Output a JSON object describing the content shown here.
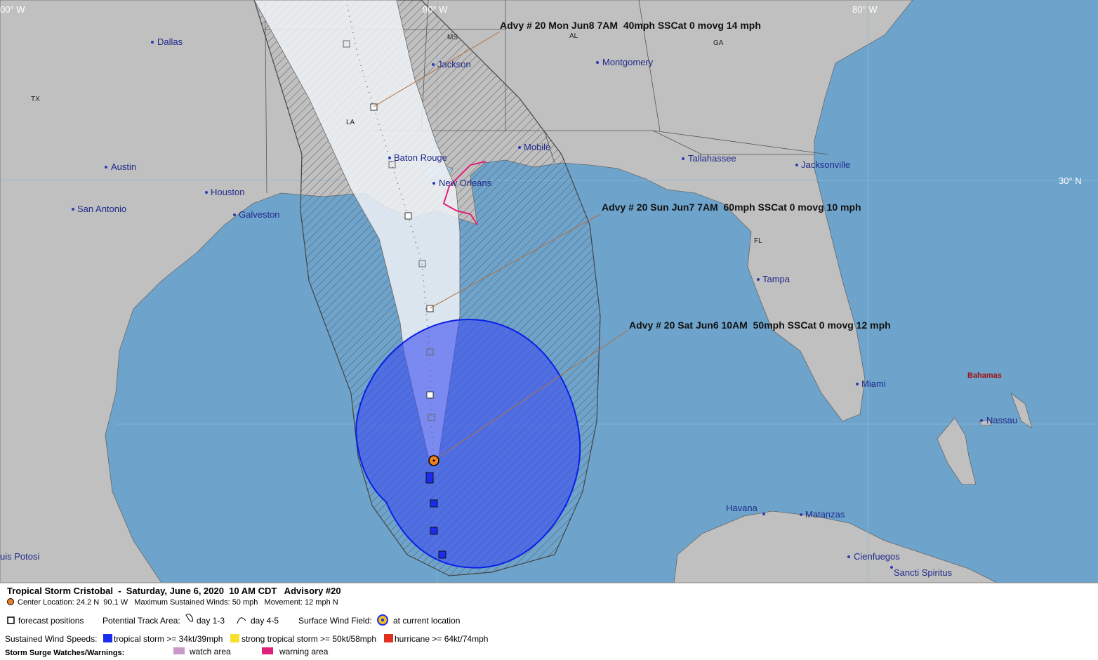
{
  "grid_labels": {
    "lon_left": "00° W",
    "lon_90": "90° W",
    "lon_80": "80° W",
    "lat_30": "30° N"
  },
  "states": [
    "TX",
    "LA",
    "MS",
    "AL",
    "GA",
    "FL"
  ],
  "cities": [
    "Dallas",
    "Jackson",
    "Montgomery",
    "Austin",
    "Houston",
    "San Antonio",
    "Galveston",
    "Baton Rouge",
    "New Orleans",
    "Mobile",
    "Tallahassee",
    "Jacksonville",
    "Tampa",
    "Miami",
    "Havana",
    "Matanzas",
    "Cienfuegos",
    "Sancti Spiritus",
    "Nassau",
    "uis Potosi"
  ],
  "regions": {
    "bahamas": "Bahamas"
  },
  "advisories": [
    "Advy # 20 Mon Jun8 7AM  40mph SSCat 0 movg 14 mph",
    "Advy # 20 Sun Jun7 7AM  60mph SSCat 0 movg 10 mph",
    "Advy # 20 Sat Jun6 10AM  50mph SSCat 0 movg 12 mph"
  ],
  "legend": {
    "title": "Tropical Storm Cristobal  -  Saturday, June 6, 2020  10 AM CDT   Advisory #20",
    "details": "Center Location: 24.2 N  90.1 W   Maximum Sustained Winds: 50 mph   Movement: 12 mph N",
    "forecast_positions": "forecast positions",
    "track_area": "Potential Track Area:",
    "day_1_3": "day 1-3",
    "day_4_5": "day 4-5",
    "wind_field": "Surface Wind Field:",
    "current_location": "at current location",
    "wind_speeds": "Sustained Wind Speeds:",
    "tropical_storm": "tropical storm >= 34kt/39mph",
    "strong_tropical_storm": "strong tropical storm >= 50kt/58mph",
    "hurricane": "hurricane >= 64kt/74mph",
    "storm_surge": "Storm Surge Watches/Warnings:",
    "watch_area": "watch area",
    "warning_area": "warning area"
  }
}
